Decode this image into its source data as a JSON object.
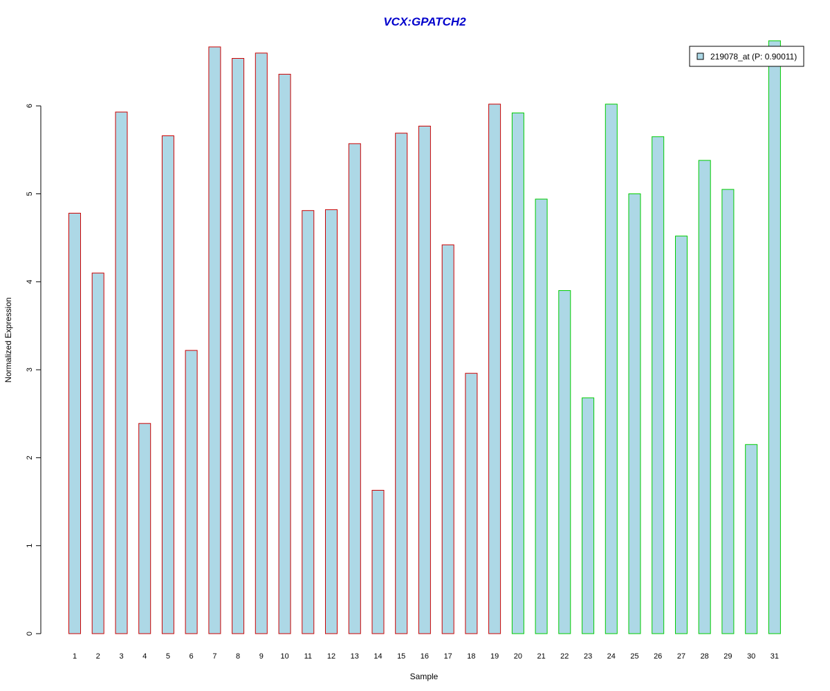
{
  "chart_data": {
    "type": "bar",
    "title": "VCX:GPATCH2",
    "xlabel": "Sample",
    "ylabel": "Normalized Expression",
    "ylim": [
      0,
      6.75
    ],
    "yticks": [
      "0",
      "1",
      "2",
      "3",
      "4",
      "5",
      "6"
    ],
    "grid": false,
    "legend": {
      "position": "top-right",
      "entries": [
        {
          "label": "219078_at (P: 0.90011)",
          "fill": "#add8e6"
        }
      ]
    },
    "categories": [
      "1",
      "2",
      "3",
      "4",
      "5",
      "6",
      "7",
      "8",
      "9",
      "10",
      "11",
      "12",
      "13",
      "14",
      "15",
      "16",
      "17",
      "18",
      "19",
      "20",
      "21",
      "22",
      "23",
      "24",
      "25",
      "26",
      "27",
      "28",
      "29",
      "30",
      "31"
    ],
    "values": [
      4.78,
      4.1,
      5.93,
      2.39,
      5.66,
      3.22,
      6.67,
      6.54,
      6.6,
      6.36,
      4.81,
      4.82,
      5.57,
      1.63,
      5.69,
      5.77,
      4.42,
      2.96,
      6.02,
      5.92,
      4.94,
      3.9,
      2.68,
      6.02,
      5.0,
      5.65,
      4.52,
      5.38,
      5.05,
      2.15,
      6.74
    ],
    "groups": [
      {
        "samples": [
          "1",
          "2",
          "3",
          "4",
          "5",
          "6",
          "7",
          "8",
          "9",
          "10",
          "11",
          "12",
          "13",
          "14",
          "15",
          "16",
          "17",
          "18",
          "19"
        ],
        "border_color": "#cc0000"
      },
      {
        "samples": [
          "20",
          "21",
          "22",
          "23",
          "24",
          "25",
          "26",
          "27",
          "28",
          "29",
          "30",
          "31"
        ],
        "border_color": "#00cc00"
      }
    ],
    "bar_fill": "#add8e6",
    "title_color": "#0000cc"
  }
}
